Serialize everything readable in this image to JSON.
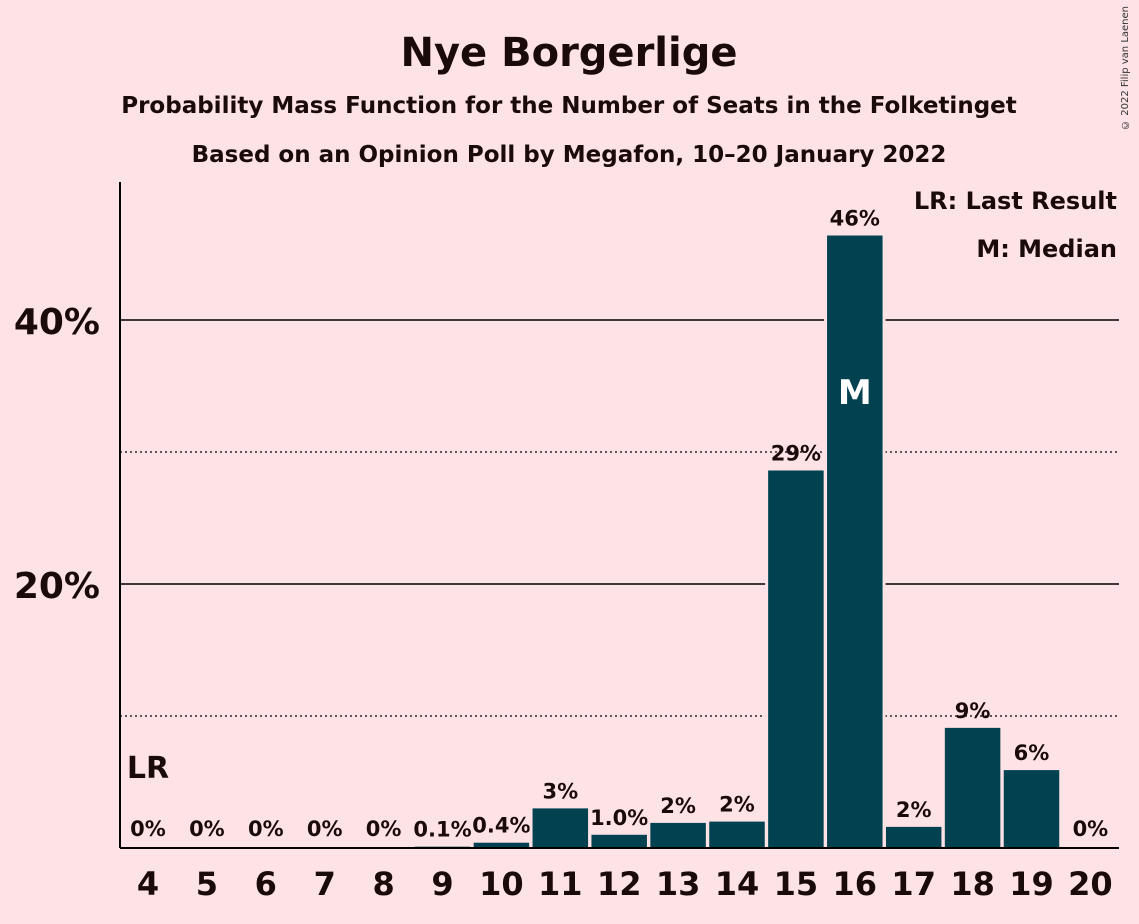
{
  "title": "Nye Borgerlige",
  "subtitle": "Probability Mass Function for the Number of Seats in the Folketinget",
  "subtitle2": "Based on an Opinion Poll by Megafon, 10–20 January 2022",
  "legend": {
    "lr": "LR: Last Result",
    "m": "M: Median"
  },
  "copyright": "© 2022 Filip van Laenen",
  "colors": {
    "background": "#fde2e6",
    "bar": "#024250",
    "text": "#1a0a0a"
  },
  "chart_data": {
    "type": "bar",
    "categories": [
      "4",
      "5",
      "6",
      "7",
      "8",
      "9",
      "10",
      "11",
      "12",
      "13",
      "14",
      "15",
      "16",
      "17",
      "18",
      "19",
      "20"
    ],
    "values": [
      0,
      0,
      0,
      0,
      0,
      0.1,
      0.4,
      3.0,
      1.0,
      1.9,
      2.0,
      28.6,
      46.4,
      1.6,
      9.1,
      5.9,
      0
    ],
    "labels": [
      "0%",
      "0%",
      "0%",
      "0%",
      "0%",
      "0.1%",
      "0.4%",
      "3%",
      "1.0%",
      "2%",
      "2%",
      "29%",
      "46%",
      "2%",
      "9%",
      "6%",
      "0%"
    ],
    "ylim": [
      0,
      50
    ],
    "yticks": [
      {
        "value": 20,
        "label": "20%"
      },
      {
        "value": 40,
        "label": "40%"
      }
    ],
    "minor_gridlines": [
      10,
      30
    ],
    "last_result": {
      "category": "4",
      "label": "LR"
    },
    "median": {
      "category": "16",
      "label": "M"
    },
    "legend_position": "top-right"
  }
}
